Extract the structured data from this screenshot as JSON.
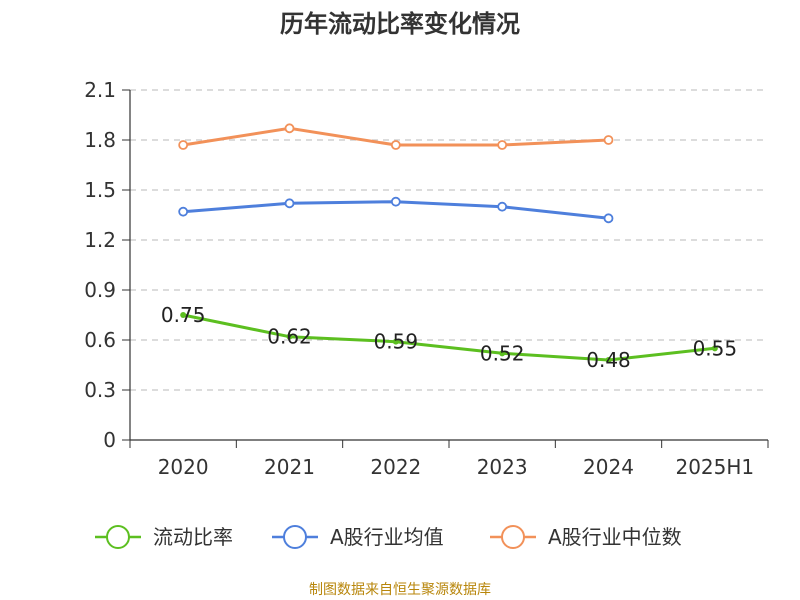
{
  "chart_data": {
    "type": "line",
    "title": "历年流动比率变化情况",
    "categories": [
      "2020",
      "2021",
      "2022",
      "2023",
      "2024",
      "2025H1"
    ],
    "ylim": [
      0,
      2.1
    ],
    "yticks": [
      "0",
      "0.3",
      "0.6",
      "0.9",
      "1.2",
      "1.5",
      "1.8",
      "2.1"
    ],
    "grid": true,
    "legend_position": "bottom",
    "series": [
      {
        "name": "流动比率",
        "color": "#5cbf20",
        "values": [
          0.75,
          0.62,
          0.59,
          0.52,
          0.48,
          0.55
        ],
        "labels": [
          "0.75",
          "0.62",
          "0.59",
          "0.52",
          "0.48",
          "0.55"
        ]
      },
      {
        "name": "A股行业均值",
        "color": "#4e7fdc",
        "values": [
          1.37,
          1.42,
          1.43,
          1.4,
          1.33,
          null
        ]
      },
      {
        "name": "A股行业中位数",
        "color": "#f29159",
        "values": [
          1.77,
          1.87,
          1.77,
          1.77,
          1.8,
          null
        ]
      }
    ],
    "source": "制图数据来自恒生聚源数据库"
  }
}
